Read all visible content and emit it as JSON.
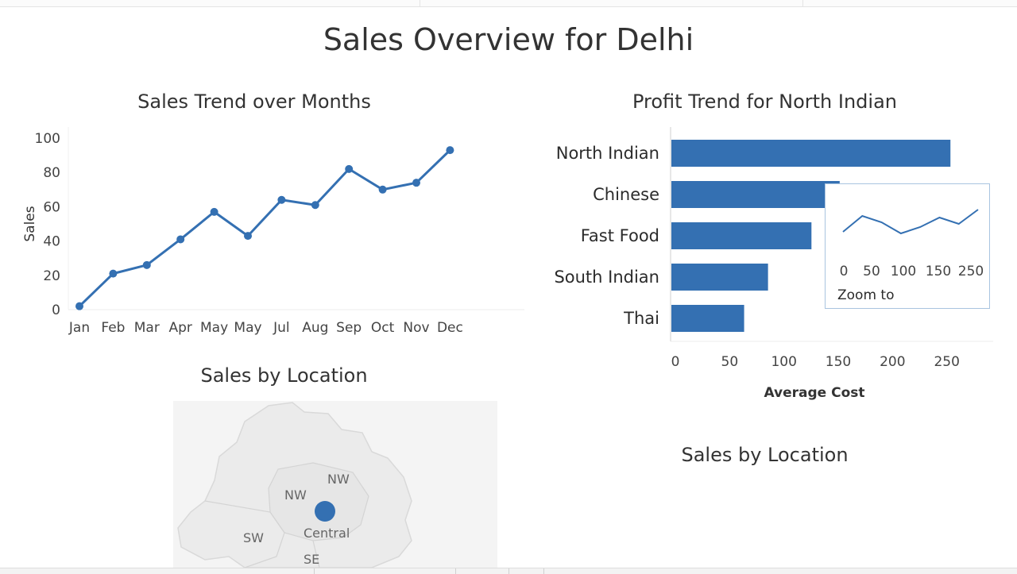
{
  "dashboard": {
    "title": "Sales Overview for Delhi"
  },
  "colors": {
    "primary": "#3470b2",
    "map_fill": "#eeeeee",
    "map_background": "#f3f3f3"
  },
  "chart_data": [
    {
      "type": "line",
      "title": "Sales Trend over Months",
      "xlabel": "",
      "ylabel": "Sales",
      "categories": [
        "Jan",
        "Feb",
        "Mar",
        "Apr",
        "May",
        "May",
        "Jul",
        "Aug",
        "Sep",
        "Oct",
        "Nov",
        "Dec"
      ],
      "values": [
        2,
        21,
        26,
        41,
        57,
        43,
        64,
        61,
        82,
        70,
        74,
        93
      ],
      "y_ticks": [
        "0",
        "20",
        "40",
        "60",
        "80",
        "100"
      ],
      "ylim": [
        0,
        100
      ],
      "grid": false
    },
    {
      "type": "bar",
      "orientation": "horizontal",
      "title": "Profit Trend for North Indian",
      "xlabel": "Average Cost",
      "categories": [
        "North Indian",
        "Chinese",
        "Fast Food",
        "South Indian",
        "Thai"
      ],
      "values": [
        257,
        155,
        129,
        89,
        67
      ],
      "x_ticks": [
        "0",
        "50",
        "100",
        "150",
        "200",
        "250"
      ],
      "xlim": [
        0,
        300
      ],
      "inset": {
        "type": "line",
        "caption": "Zoom to",
        "x_ticks": [
          "0",
          "50",
          "100",
          "150",
          "250"
        ],
        "values": [
          46,
          56,
          52,
          45,
          49,
          55,
          51,
          60
        ],
        "ylim": [
          40,
          65
        ]
      }
    },
    {
      "type": "map",
      "title": "Sales by Location",
      "region_labels": [
        "NW",
        "NW",
        "Central",
        "SW",
        "SE"
      ],
      "markers": [
        {
          "label": "Central",
          "size": "large"
        }
      ]
    }
  ],
  "extra_titles": {
    "right_bottom": "Sales by Location"
  }
}
